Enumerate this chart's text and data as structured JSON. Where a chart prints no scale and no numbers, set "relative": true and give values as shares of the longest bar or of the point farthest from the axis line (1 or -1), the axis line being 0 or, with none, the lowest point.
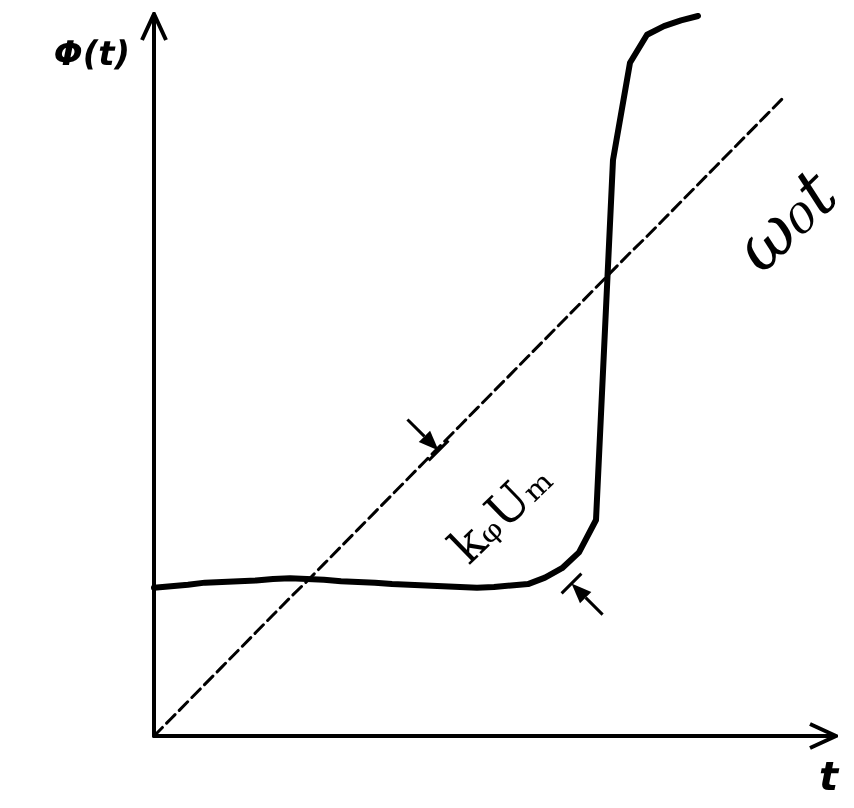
{
  "chart_data": {
    "type": "line",
    "relative": true,
    "xlabel": "t",
    "ylabel": "Φ(t)",
    "tick_labels": false,
    "grid": false,
    "legend": false,
    "annotations": [
      "kᵩUₘ"
    ],
    "categories": [
      null,
      null,
      null,
      null,
      null,
      null,
      null,
      null,
      null,
      null,
      null,
      null,
      null,
      null,
      null,
      null,
      null,
      null,
      null,
      null,
      null,
      null,
      null,
      null,
      null,
      null,
      null,
      null,
      null,
      null,
      null,
      null,
      null,
      null,
      null,
      null,
      null,
      null,
      null,
      null,
      null
    ],
    "series": [
      {
        "color": "#000000",
        "line_style": "solid",
        "values": [
          0.206,
          0.208,
          0.21,
          0.213,
          0.214,
          0.215,
          0.216,
          0.218,
          0.219,
          0.218,
          0.217,
          0.215,
          0.214,
          0.213,
          0.211,
          0.21,
          0.209,
          0.208,
          0.207,
          0.206,
          0.207,
          0.209,
          0.211,
          0.22,
          0.233,
          0.255,
          0.3,
          0.8,
          0.935,
          0.974,
          0.986,
          0.994,
          1.0,
          null,
          null,
          null,
          null,
          null,
          null,
          null,
          null
        ]
      },
      {
        "name": "ω₀t",
        "color": "#000000",
        "line_style": "dashed",
        "values": [
          0,
          0.024,
          0.048,
          0.072,
          0.096,
          0.12,
          0.144,
          0.168,
          0.192,
          0.215,
          0.239,
          0.263,
          0.287,
          0.311,
          0.335,
          0.359,
          0.383,
          0.407,
          0.431,
          0.455,
          0.479,
          0.503,
          0.527,
          0.551,
          0.575,
          0.599,
          0.623,
          0.647,
          0.671,
          0.694,
          0.718,
          0.742,
          0.766,
          0.79,
          0.814,
          0.838,
          0.862,
          0.886,
          null,
          null,
          null
        ]
      }
    ]
  }
}
